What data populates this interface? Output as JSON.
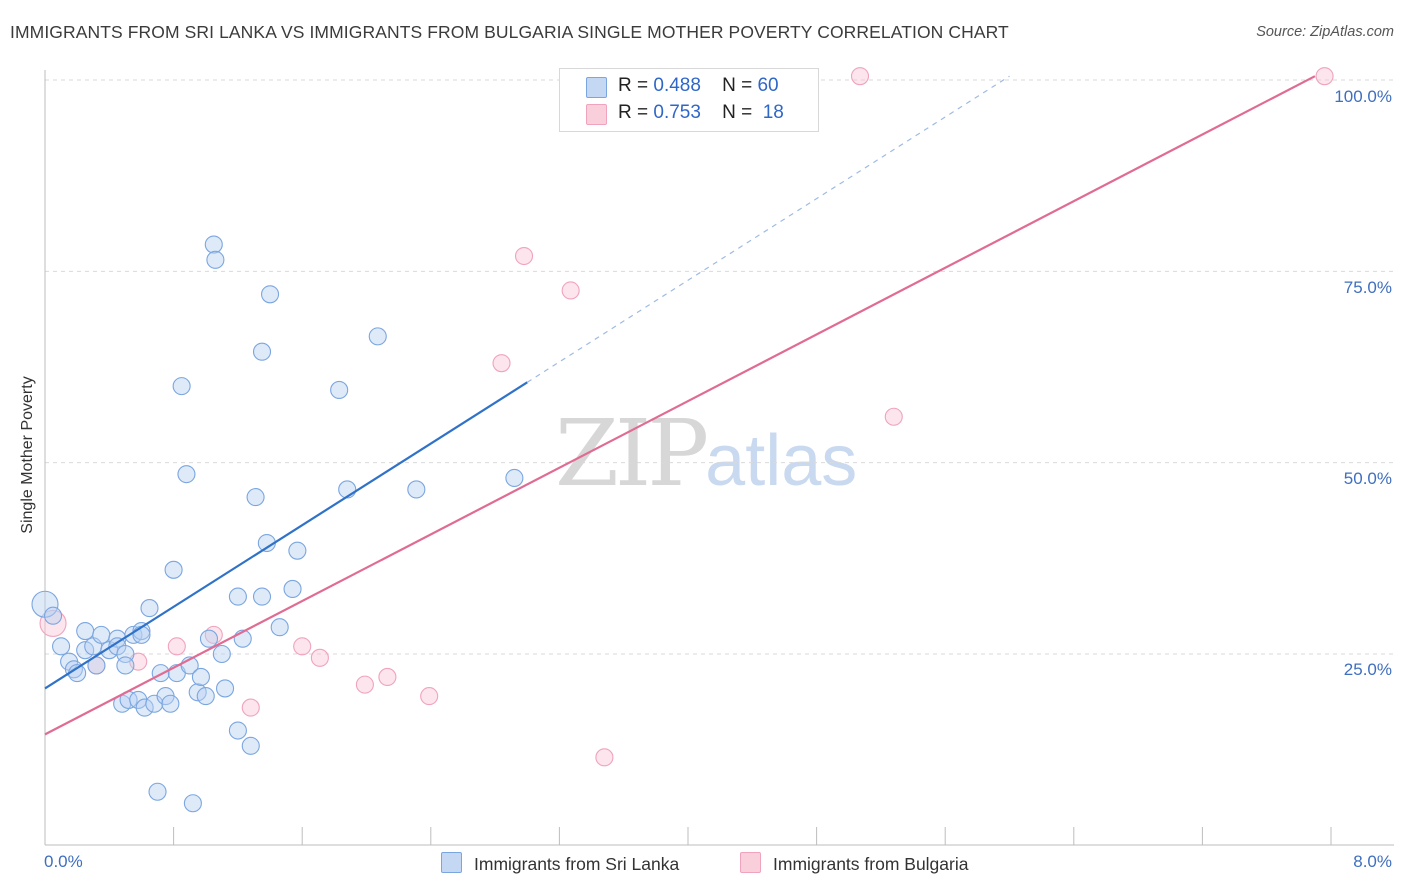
{
  "header": {
    "title": "IMMIGRANTS FROM SRI LANKA VS IMMIGRANTS FROM BULGARIA SINGLE MOTHER POVERTY CORRELATION CHART",
    "source": "Source: ZipAtlas.com"
  },
  "watermark": {
    "zip": "ZIP",
    "atlas": "atlas"
  },
  "legend": {
    "rows": [
      {
        "r_label": "R =",
        "r_value": "0.488",
        "n_label": "N =",
        "n_value": "60"
      },
      {
        "r_label": "R =",
        "r_value": "0.753",
        "n_label": "N =",
        "n_value": "18"
      }
    ]
  },
  "bottom_legend": [
    "Immigrants from Sri Lanka",
    "Immigrants from Bulgaria"
  ],
  "axis": {
    "ylabel": "Single Mother Poverty",
    "x_min_label": "0.0%",
    "x_max_label": "8.0%",
    "y_ticks": [
      "100.0%",
      "75.0%",
      "50.0%",
      "25.0%"
    ]
  },
  "chart_data": {
    "type": "scatter",
    "title": "IMMIGRANTS FROM SRI LANKA VS IMMIGRANTS FROM BULGARIA SINGLE MOTHER POVERTY CORRELATION CHART",
    "xlabel": "",
    "ylabel": "Single Mother Poverty",
    "xlim": [
      0,
      8.4
    ],
    "ylim": [
      0,
      104
    ],
    "y_ticks": [
      25,
      50,
      75,
      100
    ],
    "grid": true,
    "colors": {
      "sri_lanka": "#7aa6e0",
      "sri_lanka_line": "#2f72c8",
      "bulgaria": "#f0a3bc",
      "bulgaria_line": "#e06b93"
    },
    "series": [
      {
        "name": "Immigrants from Sri Lanka",
        "R": 0.488,
        "N": 60,
        "trend": {
          "x0": 0,
          "y0": 20.5,
          "x1": 3.0,
          "y1": 60.5,
          "dashed_to_x": 6.0,
          "dashed_to_y": 100.5
        },
        "points": [
          [
            0.0,
            31.5,
            2
          ],
          [
            0.05,
            30,
            1
          ],
          [
            0.1,
            26,
            1
          ],
          [
            0.15,
            24,
            1
          ],
          [
            0.18,
            23,
            1
          ],
          [
            0.2,
            22.5,
            1
          ],
          [
            0.25,
            25.5,
            1
          ],
          [
            0.3,
            26,
            1
          ],
          [
            0.25,
            28,
            1
          ],
          [
            0.32,
            23.5,
            1
          ],
          [
            0.35,
            27.5,
            1
          ],
          [
            0.4,
            25.5,
            1
          ],
          [
            0.45,
            27,
            1
          ],
          [
            0.45,
            26,
            1
          ],
          [
            0.48,
            18.5,
            1
          ],
          [
            0.5,
            25,
            1
          ],
          [
            0.5,
            23.5,
            1
          ],
          [
            0.52,
            19,
            1
          ],
          [
            0.55,
            27.5,
            1
          ],
          [
            0.58,
            19,
            1
          ],
          [
            0.6,
            28,
            1
          ],
          [
            0.6,
            27.5,
            1
          ],
          [
            0.62,
            18,
            1
          ],
          [
            0.65,
            31,
            1
          ],
          [
            0.68,
            18.5,
            1
          ],
          [
            0.7,
            7,
            1
          ],
          [
            0.72,
            22.5,
            1
          ],
          [
            0.75,
            19.5,
            1
          ],
          [
            0.78,
            18.5,
            1
          ],
          [
            0.8,
            36,
            1
          ],
          [
            0.82,
            22.5,
            1
          ],
          [
            0.85,
            60,
            1
          ],
          [
            0.88,
            48.5,
            1
          ],
          [
            0.9,
            23.5,
            1
          ],
          [
            0.92,
            5.5,
            1
          ],
          [
            0.95,
            20,
            1
          ],
          [
            0.97,
            22,
            1
          ],
          [
            1.0,
            19.5,
            1
          ],
          [
            1.02,
            27,
            1
          ],
          [
            1.05,
            78.5,
            1
          ],
          [
            1.06,
            76.5,
            1
          ],
          [
            1.1,
            25,
            1
          ],
          [
            1.12,
            20.5,
            1
          ],
          [
            1.2,
            32.5,
            1
          ],
          [
            1.2,
            15,
            1
          ],
          [
            1.23,
            27,
            1
          ],
          [
            1.28,
            13,
            1
          ],
          [
            1.31,
            45.5,
            1
          ],
          [
            1.35,
            64.5,
            1
          ],
          [
            1.35,
            32.5,
            1
          ],
          [
            1.38,
            39.5,
            1
          ],
          [
            1.4,
            72,
            1
          ],
          [
            1.46,
            28.5,
            1
          ],
          [
            1.54,
            33.5,
            1
          ],
          [
            1.57,
            38.5,
            1
          ],
          [
            1.83,
            59.5,
            1
          ],
          [
            1.88,
            46.5,
            1
          ],
          [
            2.07,
            66.5,
            1
          ],
          [
            2.31,
            46.5,
            1
          ],
          [
            2.92,
            48,
            1
          ]
        ]
      },
      {
        "name": "Immigrants from Bulgaria",
        "R": 0.753,
        "N": 18,
        "trend": {
          "x0": 0,
          "y0": 14.5,
          "x1": 7.9,
          "y1": 100.5
        },
        "points": [
          [
            0.05,
            29,
            2
          ],
          [
            0.32,
            23.5,
            1
          ],
          [
            0.58,
            24,
            1
          ],
          [
            0.82,
            26,
            1
          ],
          [
            1.05,
            27.5,
            1
          ],
          [
            1.28,
            18,
            1
          ],
          [
            1.6,
            26,
            1
          ],
          [
            1.71,
            24.5,
            1
          ],
          [
            1.99,
            21,
            1
          ],
          [
            2.13,
            22,
            1
          ],
          [
            2.39,
            19.5,
            1
          ],
          [
            2.84,
            63,
            1
          ],
          [
            2.98,
            77,
            1
          ],
          [
            3.27,
            72.5,
            1
          ],
          [
            3.48,
            11.5,
            1
          ],
          [
            5.07,
            100.5,
            1
          ],
          [
            5.28,
            56,
            1
          ],
          [
            7.96,
            100.5,
            1
          ]
        ]
      }
    ]
  }
}
